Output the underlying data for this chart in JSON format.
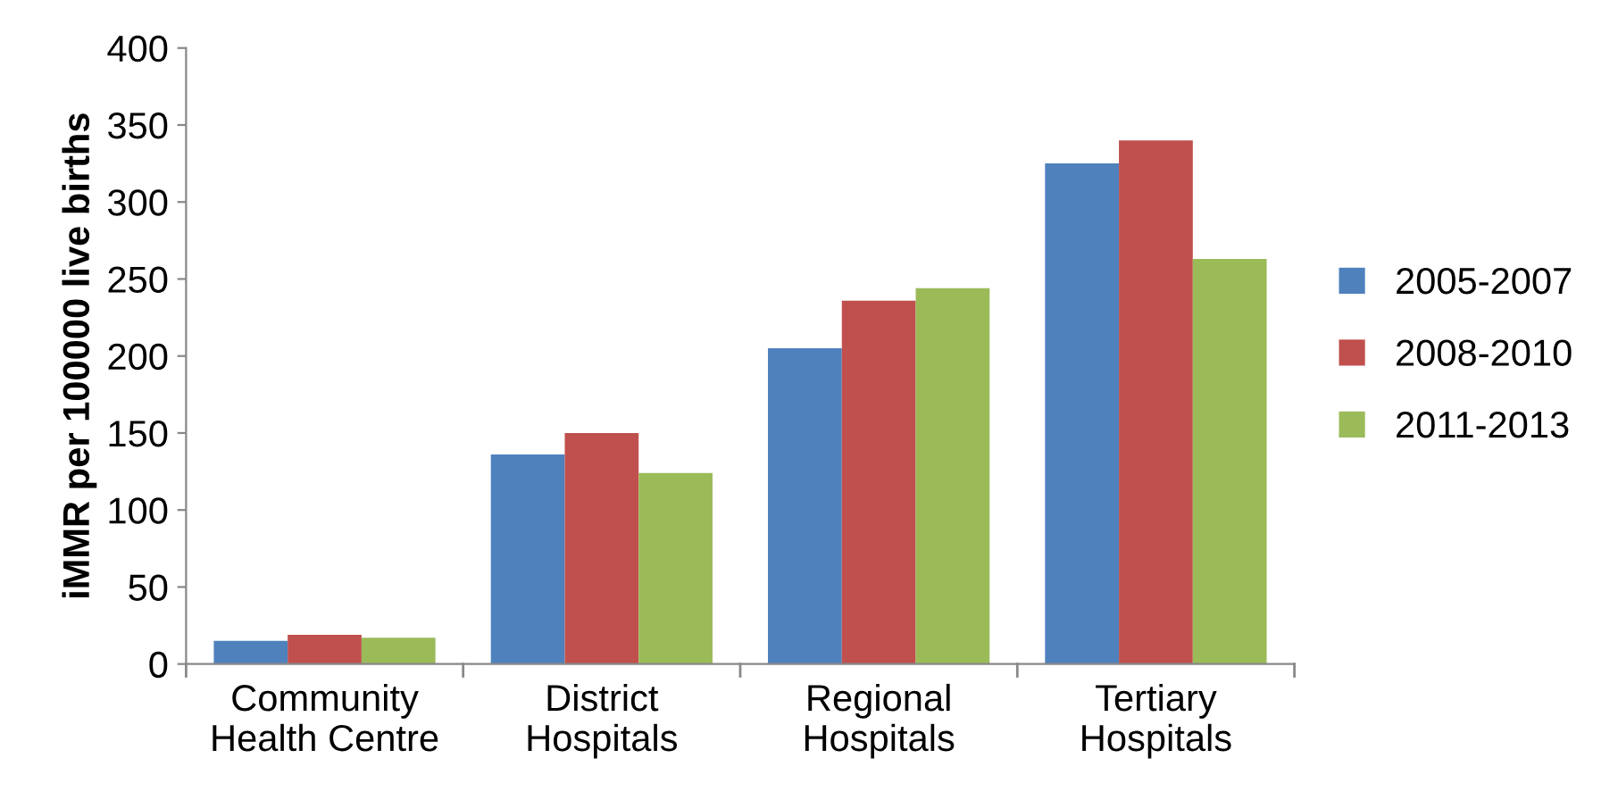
{
  "chart_data": {
    "type": "bar",
    "ylabel": "iMMR per 100000 live births",
    "categories": [
      "Community\nHealth Centre",
      "District\nHospitals",
      "Regional\nHospitals",
      "Tertiary\nHospitals"
    ],
    "series": [
      {
        "name": "2005-2007",
        "color": "#4f81bd",
        "values": [
          15,
          136,
          205,
          325
        ]
      },
      {
        "name": "2008-2010",
        "color": "#c0504d",
        "values": [
          19,
          150,
          236,
          340
        ]
      },
      {
        "name": "2011-2013",
        "color": "#9bbb59",
        "values": [
          17,
          124,
          244,
          263
        ]
      }
    ],
    "ylim": [
      0,
      400
    ],
    "yticks": [
      0,
      50,
      100,
      150,
      200,
      250,
      300,
      350,
      400
    ],
    "grid": false,
    "legend": "right"
  }
}
